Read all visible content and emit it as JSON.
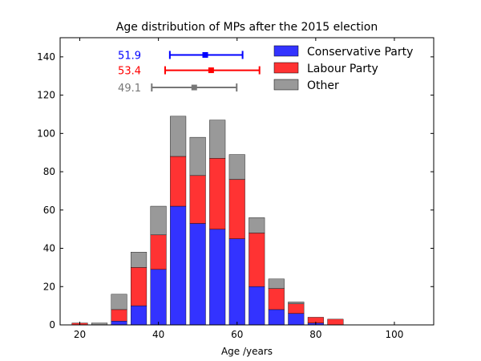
{
  "chart_data": {
    "type": "bar",
    "stacked": true,
    "title": "Age distribution of MPs after the 2015 election",
    "xlabel": "Age /years",
    "ylabel": "",
    "xlim": [
      15,
      110
    ],
    "ylim": [
      0,
      150
    ],
    "xticks": [
      20,
      40,
      60,
      80,
      100
    ],
    "yticks": [
      0,
      20,
      40,
      60,
      80,
      100,
      120,
      140
    ],
    "bin_width": 5,
    "bins": [
      20,
      25,
      30,
      35,
      40,
      45,
      50,
      55,
      60,
      65,
      70,
      75,
      80,
      85
    ],
    "series": [
      {
        "name": "Conservative Party",
        "color": "#3333ff",
        "values": [
          0,
          0,
          2,
          10,
          29,
          62,
          53,
          50,
          45,
          20,
          8,
          6,
          1,
          0
        ]
      },
      {
        "name": "Labour Party",
        "color": "#ff3333",
        "values": [
          1,
          0,
          6,
          20,
          18,
          26,
          25,
          37,
          31,
          28,
          11,
          5,
          3,
          3
        ]
      },
      {
        "name": "Other",
        "color": "#999999",
        "values": [
          0,
          1,
          8,
          8,
          15,
          21,
          20,
          20,
          13,
          8,
          5,
          1,
          0,
          0
        ]
      }
    ],
    "means": [
      {
        "label": "51.9",
        "mean": 51.9,
        "low": 42.9,
        "high": 61.4,
        "y": 141,
        "color": "#0000ff"
      },
      {
        "label": "53.4",
        "mean": 53.4,
        "low": 41.7,
        "high": 65.7,
        "y": 133,
        "color": "#ff0000"
      },
      {
        "label": "49.1",
        "mean": 49.1,
        "low": 38.3,
        "high": 59.9,
        "y": 124,
        "color": "#777777"
      }
    ],
    "legend": {
      "position": "top-right"
    },
    "grid": false
  }
}
